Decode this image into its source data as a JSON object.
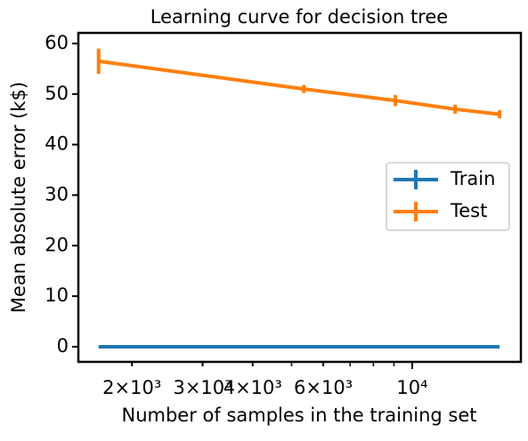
{
  "chart_data": {
    "type": "errorbar_line",
    "title": "Learning curve for decision tree",
    "xlabel": "Number of samples in the training set",
    "ylabel": "Mean absolute error (k$)",
    "xscale": "log",
    "x": [
      1651,
      5366,
      9081,
      12796,
      16512
    ],
    "series": [
      {
        "name": "Train",
        "color": "#1f77b4",
        "values": [
          0,
          0,
          0,
          0,
          0
        ],
        "errors": [
          0,
          0,
          0,
          0,
          0
        ]
      },
      {
        "name": "Test",
        "color": "#ff7f0e",
        "values": [
          56.5,
          51.0,
          48.7,
          47.0,
          46.0
        ],
        "errors": [
          2.5,
          0.8,
          1.1,
          0.9,
          0.8
        ]
      }
    ],
    "xlim": [
      1470,
      18660
    ],
    "ylim": [
      -3,
      62.1
    ],
    "xticks": [
      {
        "value": 2000,
        "label": "2×10³"
      },
      {
        "value": 3000,
        "label": "3×10³"
      },
      {
        "value": 4000,
        "label": "4×10³"
      },
      {
        "value": 6000,
        "label": "6×10³"
      },
      {
        "value": 10000,
        "label": "10⁴"
      }
    ],
    "xticks_minor": [
      5000,
      7000,
      8000,
      9000
    ],
    "yticks": [
      0,
      10,
      20,
      30,
      40,
      50,
      60
    ],
    "legend": "center right"
  }
}
